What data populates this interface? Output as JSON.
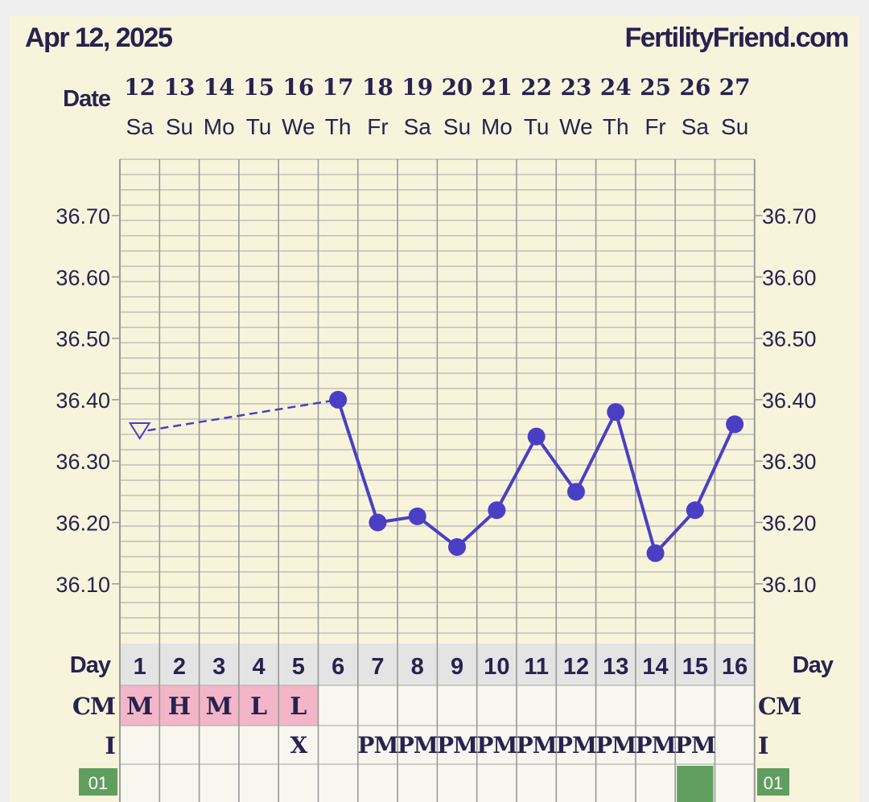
{
  "header": {
    "date": "Apr 12, 2025",
    "site": "FertilityFriend.com"
  },
  "labels": {
    "date_row": "Date",
    "day_row": "Day",
    "cm_row": "CM",
    "i_row": "I",
    "badge": "01"
  },
  "colors": {
    "background": "#f8f4dc",
    "grid": "#999999",
    "line": "#4a3fc4",
    "text": "#27224f",
    "cm_highlight": "#f2b6c8",
    "day_row_bg": "#e4e4e4",
    "cell_bg": "#f7f7f0",
    "badge": "#5f9e5f"
  },
  "chart_data": {
    "type": "line",
    "dates": [
      "12",
      "13",
      "14",
      "15",
      "16",
      "17",
      "18",
      "19",
      "20",
      "21",
      "22",
      "23",
      "24",
      "25",
      "26",
      "27"
    ],
    "weekdays": [
      "Sa",
      "Su",
      "Mo",
      "Tu",
      "We",
      "Th",
      "Fr",
      "Sa",
      "Su",
      "Mo",
      "Tu",
      "We",
      "Th",
      "Fr",
      "Sa",
      "Su"
    ],
    "cycle_days": [
      "1",
      "2",
      "3",
      "4",
      "5",
      "6",
      "7",
      "8",
      "9",
      "10",
      "11",
      "12",
      "13",
      "14",
      "15",
      "16"
    ],
    "yticks": [
      "36.70",
      "36.60",
      "36.50",
      "36.40",
      "36.30",
      "36.20",
      "36.10"
    ],
    "ylim": [
      36.0,
      36.79
    ],
    "series": [
      {
        "values": [
          36.35,
          null,
          null,
          null,
          null,
          36.4,
          36.2,
          36.21,
          36.16,
          36.22,
          36.34,
          36.25,
          36.38,
          36.15,
          36.22,
          36.36
        ],
        "discarded_points": [
          0
        ],
        "dashed_segment": [
          0,
          5
        ]
      }
    ],
    "cm": [
      "M",
      "H",
      "M",
      "L",
      "L",
      "",
      "",
      "",
      "",
      "",
      "",
      "",
      "",
      "",
      "",
      ""
    ],
    "intercourse": [
      "",
      "",
      "",
      "",
      "X",
      "",
      "PM",
      "PM",
      "PM",
      "PM",
      "PM",
      "PM",
      "PM",
      "PM",
      "PM",
      ""
    ],
    "highlight_row_cells": [
      14
    ],
    "grid": true
  }
}
